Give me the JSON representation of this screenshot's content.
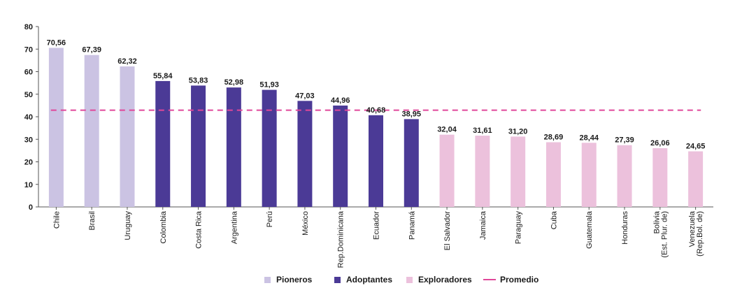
{
  "chart_data": {
    "type": "bar",
    "title": "",
    "xlabel": "",
    "ylabel": "",
    "ylim": [
      0,
      80
    ],
    "yticks": [
      0,
      10,
      20,
      30,
      40,
      50,
      60,
      70,
      80
    ],
    "grid": false,
    "legend_position": "bottom",
    "categories": [
      [
        "Chile"
      ],
      [
        "Brasil"
      ],
      [
        "Uruguay"
      ],
      [
        "Colombia"
      ],
      [
        "Costa Rica"
      ],
      [
        "Argentina"
      ],
      [
        "Perú"
      ],
      [
        "México"
      ],
      [
        "Rep.Dominicana"
      ],
      [
        "Ecuador"
      ],
      [
        "Panamá"
      ],
      [
        "El Salvador"
      ],
      [
        "Jamaica"
      ],
      [
        "Paraguay"
      ],
      [
        "Cuba"
      ],
      [
        "Guatemala"
      ],
      [
        "Honduras"
      ],
      [
        "Bolivia",
        "(Est. Plur. de)"
      ],
      [
        "Venezuela",
        "(Rep.Bol. de)"
      ]
    ],
    "values": [
      70.56,
      67.39,
      62.32,
      55.84,
      53.83,
      52.98,
      51.93,
      47.03,
      44.96,
      40.68,
      38.95,
      32.04,
      31.61,
      31.2,
      28.69,
      28.44,
      27.39,
      26.06,
      24.65
    ],
    "value_labels": [
      "70,56",
      "67,39",
      "62,32",
      "55,84",
      "53,83",
      "52,98",
      "51,93",
      "47,03",
      "44,96",
      "40,68",
      "38,95",
      "32,04",
      "31,61",
      "31,20",
      "28,69",
      "28,44",
      "27,39",
      "26,06",
      "24,65"
    ],
    "groups": [
      "pioneros",
      "pioneros",
      "pioneros",
      "adoptantes",
      "adoptantes",
      "adoptantes",
      "adoptantes",
      "adoptantes",
      "adoptantes",
      "adoptantes",
      "adoptantes",
      "exploradores",
      "exploradores",
      "exploradores",
      "exploradores",
      "exploradores",
      "exploradores",
      "exploradores",
      "exploradores"
    ],
    "series": [
      {
        "key": "pioneros",
        "name": "Pioneros",
        "color": "#cbc3e3"
      },
      {
        "key": "adoptantes",
        "name": "Adoptantes",
        "color": "#4b3a96"
      },
      {
        "key": "exploradores",
        "name": "Exploradores",
        "color": "#ecc1dc"
      }
    ],
    "reference_line": {
      "name": "Promedio",
      "value": 42.9,
      "color": "#e0479a",
      "style": "dashed"
    }
  }
}
